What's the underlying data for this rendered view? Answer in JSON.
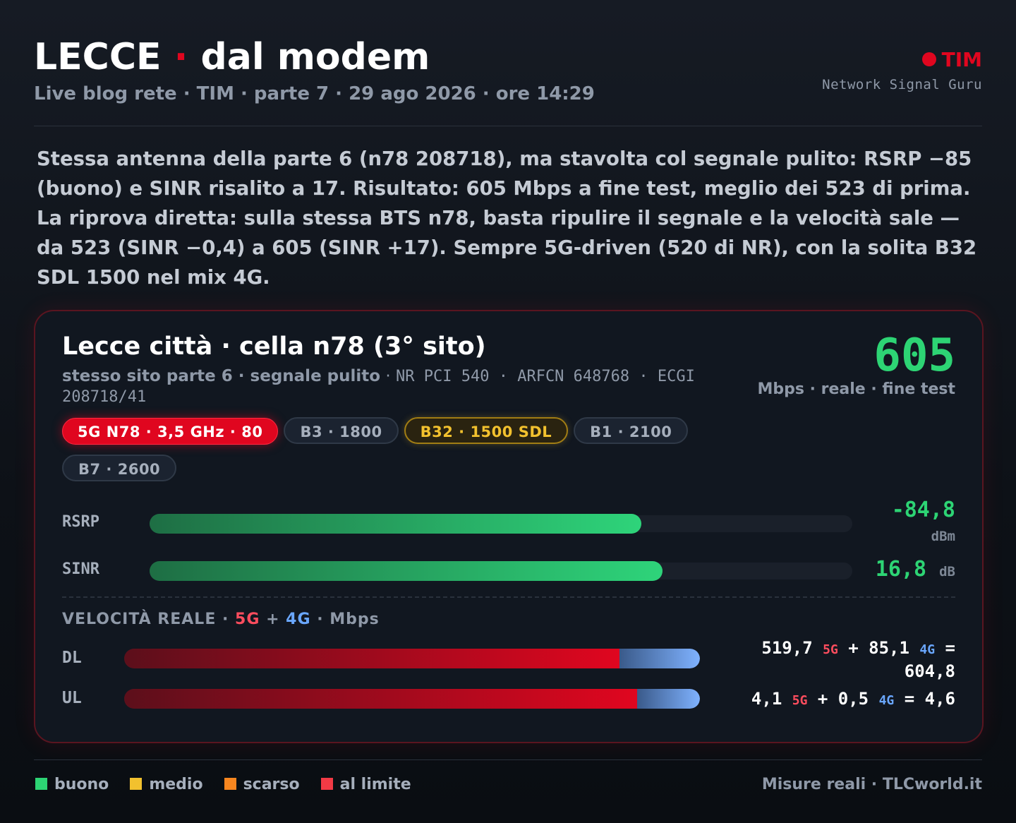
{
  "header": {
    "title_left": "LECCE",
    "title_sep": "·",
    "title_right": "dal modem",
    "subtitle": "Live blog rete · TIM · parte 7 · 29 ago 2026 · ore 14:29",
    "brand": "TIM",
    "brand_sub": "Network Signal Guru"
  },
  "intro": "Stessa antenna della parte 6 (n78 208718), ma stavolta col segnale pulito: RSRP −85 (buono) e SINR risalito a 17. Risultato: 605 Mbps a fine test, meglio dei 523 di prima. La riprova diretta: sulla stessa BTS n78, basta ripulire il segnale e la velocità sale — da 523 (SINR −0,4) a 605 (SINR +17). Sempre 5G-driven (520 di NR), con la solita B32 SDL 1500 nel mix 4G.",
  "card": {
    "title": "Lecce città · cella n78 (3° sito)",
    "subtitle_bold": "stesso sito parte 6 · segnale pulito",
    "subtitle_sep": " · ",
    "subtitle_mono": "NR PCI 540 · ARFCN 648768 · ECGI 208718/41",
    "speed_value": "605",
    "speed_caption": "Mbps · reale · fine test",
    "bands": [
      "5G N78 · 3,5 GHz · 80",
      "B3 · 1800",
      "B32 · 1500 SDL",
      "B1 · 2100",
      "B7 · 2600"
    ],
    "metrics": [
      {
        "label": "RSRP",
        "value": "-84,8",
        "unit": "dBm",
        "fill": 0.7
      },
      {
        "label": "SINR",
        "value": "16,8",
        "unit": "dB",
        "fill": 0.73
      }
    ],
    "speed_section": {
      "title_prefix": "VELOCITÀ REALE · ",
      "title_5g": "5G",
      "title_plus": " + ",
      "title_4g": "4G",
      "title_suffix": " · Mbps",
      "rows": [
        {
          "label": "DL",
          "v5": "519,7",
          "v4": "85,1",
          "total": "604,8",
          "tag5": "5G",
          "tag4": "4G",
          "plus": "+",
          "eq": "=",
          "share5": 0.86,
          "share4": 0.14
        },
        {
          "label": "UL",
          "v5": "4,1",
          "v4": "0,5",
          "total": "4,6",
          "tag5": "5G",
          "tag4": "4G",
          "plus": "+",
          "eq": "=",
          "share5": 0.891,
          "share4": 0.109
        }
      ]
    }
  },
  "legend": [
    {
      "label": "buono",
      "color": "#2dd474"
    },
    {
      "label": "medio",
      "color": "#f2c12e"
    },
    {
      "label": "scarso",
      "color": "#f7861f"
    },
    {
      "label": "al limite",
      "color": "#f23a45"
    }
  ],
  "credit": "Misure reali · TLCworld.it",
  "colors": {
    "accent": "#e0061f",
    "good": "#2dd474",
    "lte": "#6aa7ff"
  }
}
